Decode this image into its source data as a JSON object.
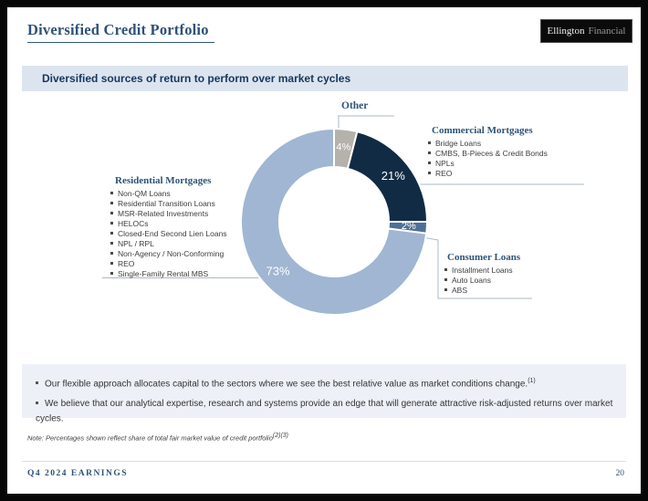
{
  "slide": {
    "title": "Diversified Credit Portfolio",
    "logo": {
      "bold": "Ellington",
      "light": "Financial"
    },
    "header_bar": "Diversified sources of return to perform over market cycles",
    "bottom_bullets": [
      {
        "text": "Our flexible approach allocates capital to the sectors where we see the best relative value as market conditions change.",
        "superscript": "(1)"
      },
      {
        "text": "We believe that our analytical expertise, research and systems provide an edge that will generate attractive risk-adjusted returns over market cycles.",
        "superscript": ""
      }
    ],
    "note": {
      "text": "Note: Percentages shown reflect share of total fair market value of credit portfolio",
      "superscript": "(2)(3)"
    },
    "footer": {
      "left": "Q4 2024 EARNINGS",
      "page": "20"
    }
  },
  "chart_data": {
    "type": "pie",
    "subtype": "donut",
    "title": "Diversified sources of return to perform over market cycles",
    "start_angle_deg": 0,
    "direction": "clockwise",
    "value_suffix": "%",
    "label_color": "#ffffff",
    "segments": [
      {
        "label": "Other",
        "value": 4,
        "color": "#b5b1ab",
        "items": []
      },
      {
        "label": "Commercial Mortgages",
        "value": 21,
        "color": "#122b44",
        "items": [
          "Bridge Loans",
          "CMBS, B-Pieces & Credit Bonds",
          "NPLs",
          "REO"
        ]
      },
      {
        "label": "Consumer Loans",
        "value": 2,
        "color": "#4e7096",
        "items": [
          "Installment Loans",
          "Auto Loans",
          "ABS"
        ]
      },
      {
        "label": "Residential Mortgages",
        "value": 73,
        "color": "#a0b6d2",
        "items": [
          "Non-QM Loans",
          "Residential Transition Loans",
          "MSR-Related Investments",
          "HELOCs",
          "Closed-End Second Lien Loans",
          "NPL / RPL",
          "Non-Agency / Non-Conforming",
          "REO",
          "Single-Family Rental MBS"
        ]
      }
    ]
  }
}
